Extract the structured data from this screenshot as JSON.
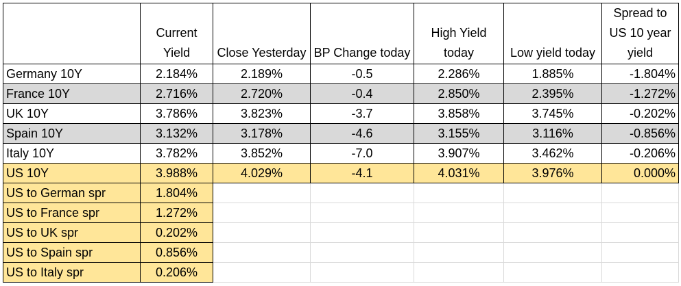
{
  "headers": [
    "",
    "Current Yield",
    "Close Yesterday",
    "BP Change today",
    "High Yield today",
    "Low yield today",
    "Spread to US 10 year yield"
  ],
  "rows": [
    {
      "name": "Germany 10Y",
      "current": "2.184%",
      "close": "2.189%",
      "bp": "-0.5",
      "high": "2.286%",
      "low": "1.885%",
      "spread": "-1.804%"
    },
    {
      "name": "France 10Y",
      "current": "2.716%",
      "close": "2.720%",
      "bp": "-0.4",
      "high": "2.850%",
      "low": "2.395%",
      "spread": "-1.272%"
    },
    {
      "name": "UK 10Y",
      "current": "3.786%",
      "close": "3.823%",
      "bp": "-3.7",
      "high": "3.858%",
      "low": "3.745%",
      "spread": "-0.202%"
    },
    {
      "name": "Spain 10Y",
      "current": "3.132%",
      "close": "3.178%",
      "bp": "-4.6",
      "high": "3.155%",
      "low": "3.116%",
      "spread": "-0.856%"
    },
    {
      "name": "Italy 10Y",
      "current": "3.782%",
      "close": "3.852%",
      "bp": "-7.0",
      "high": "3.907%",
      "low": "3.462%",
      "spread": "-0.206%"
    },
    {
      "name": "US 10Y",
      "current": "3.988%",
      "close": "4.029%",
      "bp": "-4.1",
      "high": "4.031%",
      "low": "3.976%",
      "spread": "0.000%"
    }
  ],
  "spreads": [
    {
      "name": "US to German spr",
      "value": "1.804%"
    },
    {
      "name": "US to France spr",
      "value": "1.272%"
    },
    {
      "name": "US to UK spr",
      "value": "0.202%"
    },
    {
      "name": "US to Spain spr",
      "value": "0.856%"
    },
    {
      "name": "US to Italy spr",
      "value": "0.206%"
    }
  ],
  "colors": {
    "gray_band": "#d9d9d9",
    "gold_band": "#ffe699",
    "grid": "#d9d9d9"
  }
}
